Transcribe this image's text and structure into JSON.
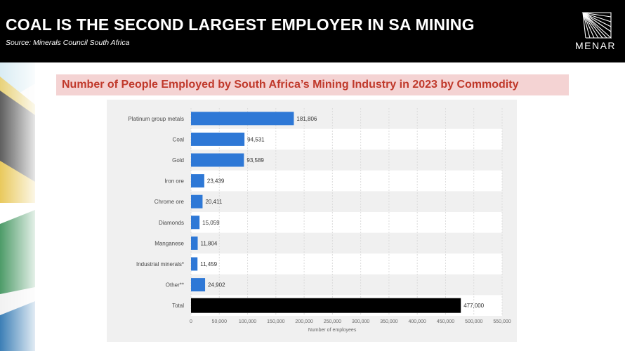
{
  "header": {
    "title": "COAL IS THE SECOND LARGEST EMPLOYER IN SA MINING",
    "source": "Source: Minerals Council South Africa",
    "logo_text": "MENAR"
  },
  "colors": {
    "bar": "#2e78d6",
    "total_bar": "#000000",
    "subtitle_text": "#c0392b",
    "subtitle_bg": "#f4d3d3"
  },
  "chart_data": {
    "type": "bar",
    "orientation": "horizontal",
    "title": "Number of People Employed by South Africa’s Mining Industry in 2023 by Commodity",
    "categories": [
      "Platinum group metals",
      "Coal",
      "Gold",
      "Iron ore",
      "Chrome ore",
      "Diamonds",
      "Manganese",
      "Industrial minerals*",
      "Other**",
      "Total"
    ],
    "values": [
      181806,
      94531,
      93589,
      23439,
      20411,
      15059,
      11804,
      11459,
      24902,
      477000
    ],
    "value_labels": [
      "181,806",
      "94,531",
      "93,589",
      "23,439",
      "20,411",
      "15,059",
      "11,804",
      "11,459",
      "24,902",
      "477,000"
    ],
    "ticks": [
      0,
      50000,
      100000,
      150000,
      200000,
      250000,
      300000,
      350000,
      400000,
      450000,
      500000,
      550000
    ],
    "tick_labels": [
      "0",
      "50,000",
      "100,000",
      "150,000",
      "200,000",
      "250,000",
      "300,000",
      "350,000",
      "400,000",
      "450,000",
      "500,000",
      "550,000"
    ],
    "xlabel": "Number of employees",
    "ylabel": "",
    "xlim": [
      0,
      550000
    ],
    "grid": true
  }
}
